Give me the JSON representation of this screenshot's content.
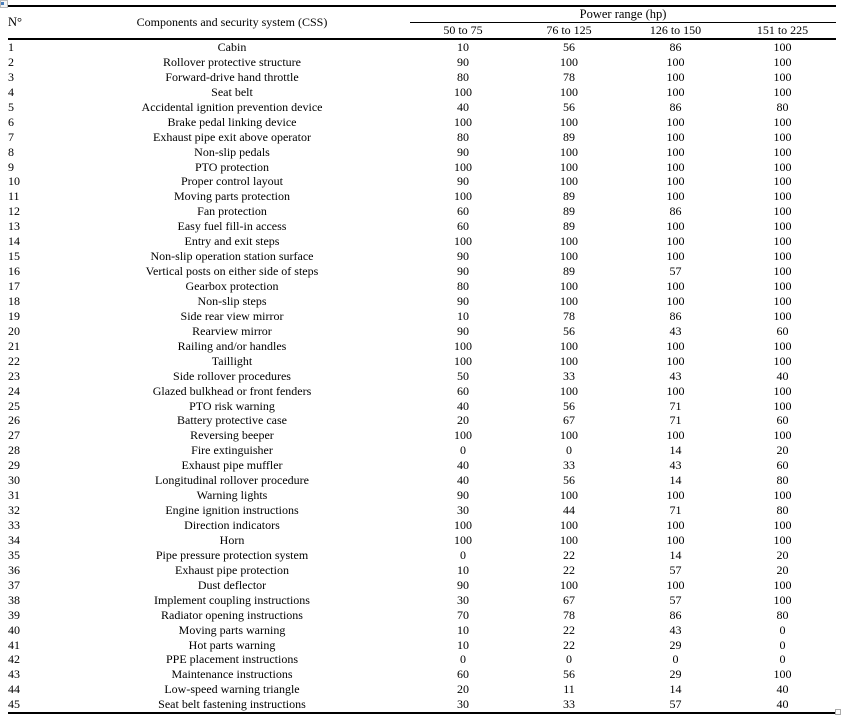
{
  "icons": {
    "top_left": "broken-image-icon",
    "bottom_right": "empty-box-icon"
  },
  "table": {
    "number_header": "N°",
    "components_header": "Components and security system (CSS)",
    "power_header": "Power range (hp)",
    "ranges": [
      "50 to 75",
      "76 to 125",
      "126 to 150",
      "151 to 225"
    ],
    "rows": [
      {
        "n": 1,
        "name": "Cabin",
        "values": [
          10,
          56,
          86,
          100
        ]
      },
      {
        "n": 2,
        "name": "Rollover protective structure",
        "values": [
          90,
          100,
          100,
          100
        ]
      },
      {
        "n": 3,
        "name": "Forward-drive hand throttle",
        "values": [
          80,
          78,
          100,
          100
        ]
      },
      {
        "n": 4,
        "name": "Seat belt",
        "values": [
          100,
          100,
          100,
          100
        ]
      },
      {
        "n": 5,
        "name": "Accidental ignition prevention device",
        "values": [
          40,
          56,
          86,
          80
        ]
      },
      {
        "n": 6,
        "name": "Brake pedal linking device",
        "values": [
          100,
          100,
          100,
          100
        ]
      },
      {
        "n": 7,
        "name": "Exhaust pipe exit above operator",
        "values": [
          80,
          89,
          100,
          100
        ]
      },
      {
        "n": 8,
        "name": "Non-slip pedals",
        "values": [
          90,
          100,
          100,
          100
        ]
      },
      {
        "n": 9,
        "name": "PTO protection",
        "values": [
          100,
          100,
          100,
          100
        ]
      },
      {
        "n": 10,
        "name": "Proper control layout",
        "values": [
          90,
          100,
          100,
          100
        ]
      },
      {
        "n": 11,
        "name": "Moving parts protection",
        "values": [
          100,
          89,
          100,
          100
        ]
      },
      {
        "n": 12,
        "name": "Fan protection",
        "values": [
          60,
          89,
          86,
          100
        ]
      },
      {
        "n": 13,
        "name": "Easy fuel fill-in access",
        "values": [
          60,
          89,
          100,
          100
        ]
      },
      {
        "n": 14,
        "name": "Entry and exit steps",
        "values": [
          100,
          100,
          100,
          100
        ]
      },
      {
        "n": 15,
        "name": "Non-slip operation station surface",
        "values": [
          90,
          100,
          100,
          100
        ]
      },
      {
        "n": 16,
        "name": "Vertical posts on either side of steps",
        "values": [
          90,
          89,
          57,
          100
        ]
      },
      {
        "n": 17,
        "name": "Gearbox protection",
        "values": [
          80,
          100,
          100,
          100
        ]
      },
      {
        "n": 18,
        "name": "Non-slip steps",
        "values": [
          90,
          100,
          100,
          100
        ]
      },
      {
        "n": 19,
        "name": "Side rear view mirror",
        "values": [
          10,
          78,
          86,
          100
        ]
      },
      {
        "n": 20,
        "name": "Rearview mirror",
        "values": [
          90,
          56,
          43,
          60
        ]
      },
      {
        "n": 21,
        "name": "Railing and/or handles",
        "values": [
          100,
          100,
          100,
          100
        ]
      },
      {
        "n": 22,
        "name": "Taillight",
        "values": [
          100,
          100,
          100,
          100
        ]
      },
      {
        "n": 23,
        "name": "Side rollover procedures",
        "values": [
          50,
          33,
          43,
          40
        ]
      },
      {
        "n": 24,
        "name": "Glazed bulkhead or front fenders",
        "values": [
          60,
          100,
          100,
          100
        ]
      },
      {
        "n": 25,
        "name": "PTO risk warning",
        "values": [
          40,
          56,
          71,
          100
        ]
      },
      {
        "n": 26,
        "name": "Battery protective case",
        "values": [
          20,
          67,
          71,
          60
        ]
      },
      {
        "n": 27,
        "name": "Reversing beeper",
        "values": [
          100,
          100,
          100,
          100
        ]
      },
      {
        "n": 28,
        "name": "Fire extinguisher",
        "values": [
          0,
          0,
          14,
          20
        ]
      },
      {
        "n": 29,
        "name": "Exhaust pipe muffler",
        "values": [
          40,
          33,
          43,
          60
        ]
      },
      {
        "n": 30,
        "name": "Longitudinal rollover procedure",
        "values": [
          40,
          56,
          14,
          80
        ]
      },
      {
        "n": 31,
        "name": "Warning lights",
        "values": [
          90,
          100,
          100,
          100
        ]
      },
      {
        "n": 32,
        "name": "Engine ignition instructions",
        "values": [
          30,
          44,
          71,
          80
        ]
      },
      {
        "n": 33,
        "name": "Direction indicators",
        "values": [
          100,
          100,
          100,
          100
        ]
      },
      {
        "n": 34,
        "name": "Horn",
        "values": [
          100,
          100,
          100,
          100
        ]
      },
      {
        "n": 35,
        "name": "Pipe pressure protection system",
        "values": [
          0,
          22,
          14,
          20
        ]
      },
      {
        "n": 36,
        "name": "Exhaust pipe protection",
        "values": [
          10,
          22,
          57,
          20
        ]
      },
      {
        "n": 37,
        "name": "Dust deflector",
        "values": [
          90,
          100,
          100,
          100
        ]
      },
      {
        "n": 38,
        "name": "Implement coupling instructions",
        "values": [
          30,
          67,
          57,
          100
        ]
      },
      {
        "n": 39,
        "name": "Radiator opening instructions",
        "values": [
          70,
          78,
          86,
          80
        ]
      },
      {
        "n": 40,
        "name": "Moving parts warning",
        "values": [
          10,
          22,
          43,
          0
        ]
      },
      {
        "n": 41,
        "name": "Hot parts warning",
        "values": [
          10,
          22,
          29,
          0
        ]
      },
      {
        "n": 42,
        "name": "PPE placement instructions",
        "values": [
          0,
          0,
          0,
          0
        ]
      },
      {
        "n": 43,
        "name": "Maintenance instructions",
        "values": [
          60,
          56,
          29,
          100
        ]
      },
      {
        "n": 44,
        "name": "Low-speed warning triangle",
        "values": [
          20,
          11,
          14,
          40
        ]
      },
      {
        "n": 45,
        "name": "Seat belt fastening instructions",
        "values": [
          30,
          33,
          57,
          40
        ]
      }
    ]
  }
}
